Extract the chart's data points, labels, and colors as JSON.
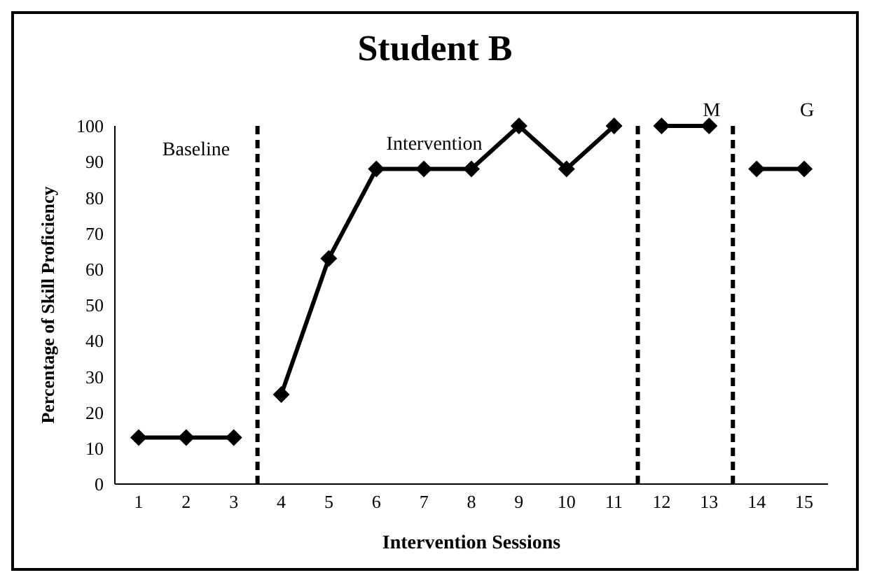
{
  "chart_data": {
    "type": "line",
    "title": "Student B",
    "xlabel": "Intervention Sessions",
    "ylabel": "Percentage of Skill Proficiency",
    "xlim": [
      0.5,
      15.5
    ],
    "xticks": [
      1,
      2,
      3,
      4,
      5,
      6,
      7,
      8,
      9,
      10,
      11,
      12,
      13,
      14,
      15
    ],
    "ylim": [
      0,
      100
    ],
    "yticks": [
      0,
      10,
      20,
      30,
      40,
      50,
      60,
      70,
      80,
      90,
      100
    ],
    "series": [
      {
        "color": "#000000",
        "x": [
          1,
          2,
          3
        ],
        "values": [
          13,
          13,
          13
        ]
      },
      {
        "color": "#000000",
        "x": [
          4,
          5,
          6,
          7,
          8,
          9,
          10,
          11
        ],
        "values": [
          25,
          63,
          88,
          88,
          88,
          100,
          88,
          100
        ]
      },
      {
        "color": "#000000",
        "x": [
          12,
          13
        ],
        "values": [
          100,
          100
        ]
      },
      {
        "color": "#000000",
        "x": [
          14,
          15
        ],
        "values": [
          88,
          88
        ]
      }
    ],
    "ref_lines": [
      {
        "axis": "x",
        "value": 3.5,
        "line_style": "dashed",
        "color": "#000000"
      },
      {
        "axis": "x",
        "value": 11.5,
        "line_style": "dashed",
        "color": "#000000"
      },
      {
        "axis": "x",
        "value": 13.5,
        "line_style": "dashed",
        "color": "#000000"
      }
    ],
    "annotations": [
      "Baseline",
      "Intervention",
      "M",
      "G"
    ],
    "marker": "diamond",
    "line_style": "solid",
    "grid": false
  }
}
